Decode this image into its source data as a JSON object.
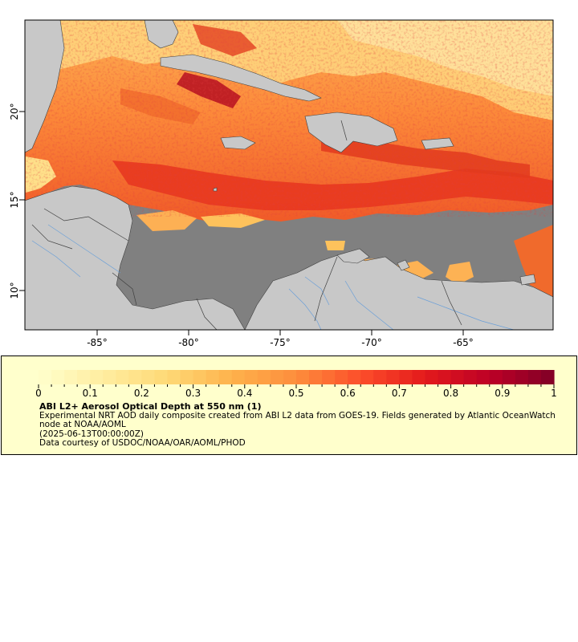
{
  "map": {
    "x_ticks": [
      "-85°",
      "-80°",
      "-75°",
      "-70°",
      "-65°"
    ],
    "y_ticks": [
      "20°",
      "15°",
      "10°"
    ],
    "colors": {
      "ocean_no_data": "#808080",
      "land": "#c8c8c8",
      "rivers": "#6a9fd8",
      "borders": "#404040"
    }
  },
  "legend": {
    "colorbar_ticks": [
      "0",
      "0.1",
      "0.2",
      "0.3",
      "0.4",
      "0.5",
      "0.6",
      "0.7",
      "0.8",
      "0.9",
      "1"
    ],
    "colormap": [
      "#ffffcc",
      "#ffeda0",
      "#fed976",
      "#feb24c",
      "#fd8d3c",
      "#fc4e2a",
      "#e31a1c",
      "#bd0026",
      "#800026"
    ],
    "title": "ABI L2+ Aerosol Optical Depth at 550 nm (1)",
    "description": "Experimental NRT AOD daily composite created from ABI L2 data from GOES-19. Fields generated by Atlantic OceanWatch node at NOAA/AOML",
    "time": "(2025-06-13T00:00:00Z)",
    "credit": "Data courtesy of USDOC/NOAA/OAR/AOML/PHOD"
  }
}
